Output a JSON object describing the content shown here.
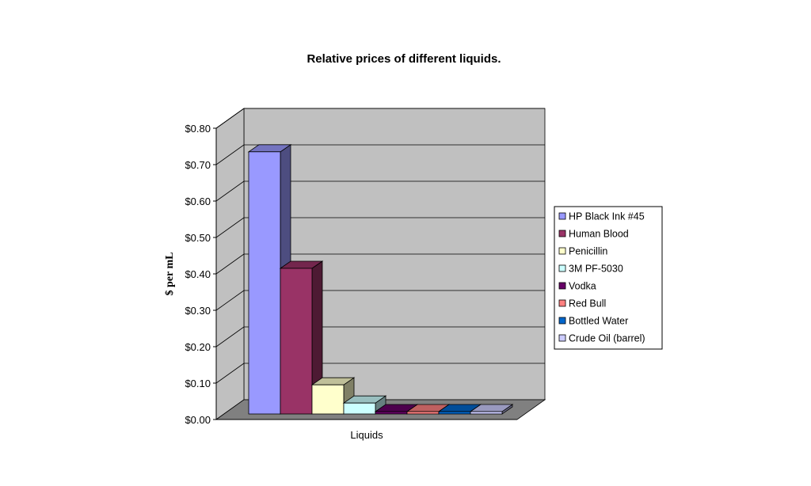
{
  "chart_data": {
    "type": "bar",
    "style": "3d-column",
    "title": "Relative prices of different liquids.",
    "xlabel": "Liquids",
    "ylabel": "$ per mL",
    "ylim": [
      0,
      0.8
    ],
    "yticks": [
      "$0.00",
      "$0.10",
      "$0.20",
      "$0.30",
      "$0.40",
      "$0.50",
      "$0.60",
      "$0.70",
      "$0.80"
    ],
    "grid": true,
    "legend_position": "right",
    "series": [
      {
        "name": "HP Black Ink #45",
        "value": 0.72,
        "color": "#9999ff"
      },
      {
        "name": "Human Blood",
        "value": 0.4,
        "color": "#993366"
      },
      {
        "name": "Penicillin",
        "value": 0.08,
        "color": "#ffffcc"
      },
      {
        "name": "3M PF-5030",
        "value": 0.03,
        "color": "#ccffff"
      },
      {
        "name": "Vodka",
        "value": 0.005,
        "color": "#660066"
      },
      {
        "name": "Red Bull",
        "value": 0.005,
        "color": "#ff8080"
      },
      {
        "name": "Bottled Water",
        "value": 0.001,
        "color": "#0066cc"
      },
      {
        "name": "Crude Oil (barrel)",
        "value": 0.0005,
        "color": "#ccccff"
      }
    ]
  }
}
